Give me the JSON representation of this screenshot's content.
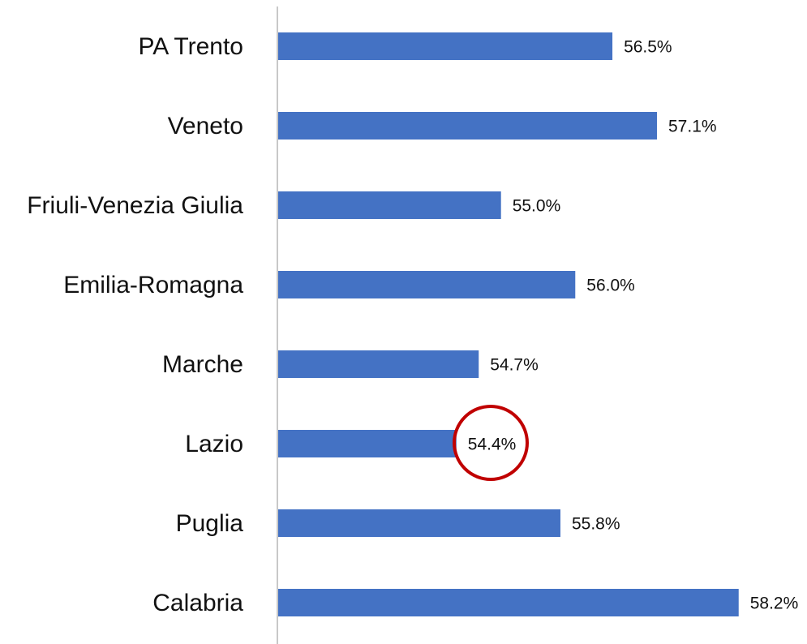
{
  "chart_data": {
    "type": "bar",
    "orientation": "horizontal",
    "categories": [
      "PA Trento",
      "Veneto",
      "Friuli-Venezia Giulia",
      "Emilia-Romagna",
      "Marche",
      "Lazio",
      "Puglia",
      "Calabria"
    ],
    "values": [
      56.5,
      57.1,
      55.0,
      56.0,
      54.7,
      54.4,
      55.8,
      58.2
    ],
    "value_labels": [
      "56.5%",
      "57.1%",
      "55.0%",
      "56.0%",
      "54.7%",
      "54.4%",
      "55.8%",
      "58.2%"
    ],
    "color": "#4472c4",
    "xlim": [
      52,
      59
    ]
  }
}
